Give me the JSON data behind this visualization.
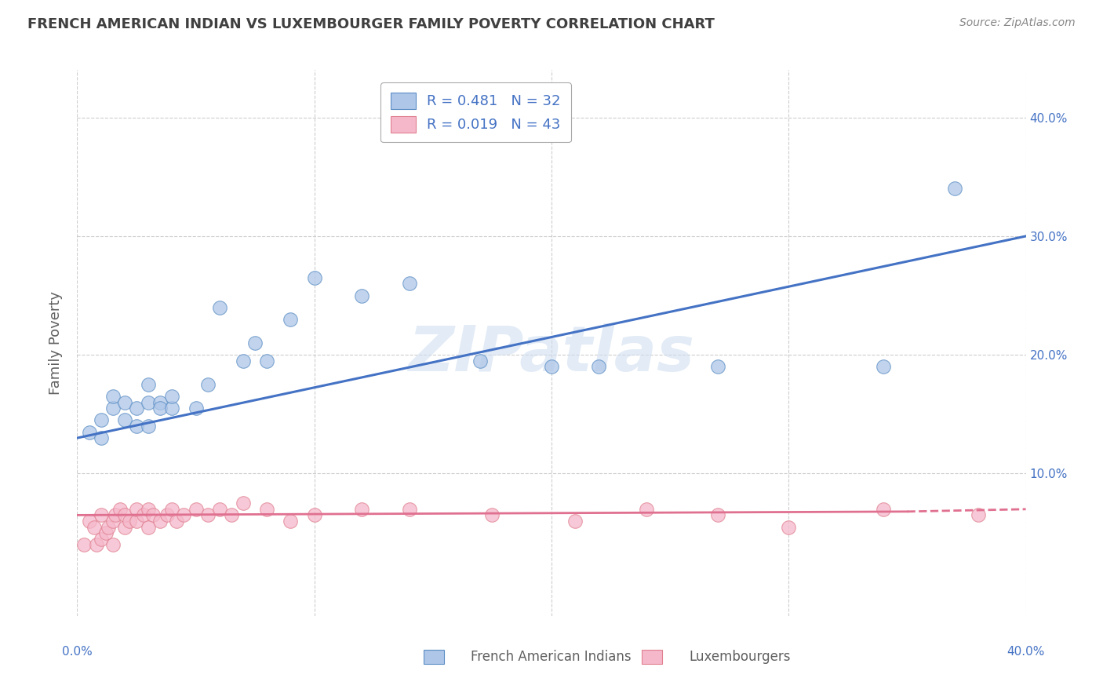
{
  "title": "FRENCH AMERICAN INDIAN VS LUXEMBOURGER FAMILY POVERTY CORRELATION CHART",
  "source_text": "Source: ZipAtlas.com",
  "ylabel": "Family Poverty",
  "x_min": 0.0,
  "x_max": 0.4,
  "y_min": -0.02,
  "y_max": 0.44,
  "x_ticks": [
    0.0,
    0.1,
    0.2,
    0.3,
    0.4
  ],
  "x_tick_labels": [
    "0.0%",
    "",
    "",
    "",
    "40.0%"
  ],
  "y_ticks": [
    0.1,
    0.2,
    0.3,
    0.4
  ],
  "y_tick_labels": [
    "10.0%",
    "20.0%",
    "30.0%",
    "40.0%"
  ],
  "blue_R": 0.481,
  "blue_N": 32,
  "pink_R": 0.019,
  "pink_N": 43,
  "blue_color": "#aec6e8",
  "pink_color": "#f5b8cb",
  "blue_edge_color": "#5b8ec4",
  "pink_edge_color": "#e08090",
  "blue_line_color": "#4472c4",
  "pink_line_color": "#e07090",
  "watermark": "ZIPatlas",
  "legend_label_blue": "French American Indians",
  "legend_label_pink": "Luxembourgers",
  "blue_scatter_x": [
    0.005,
    0.01,
    0.01,
    0.015,
    0.015,
    0.02,
    0.02,
    0.025,
    0.025,
    0.03,
    0.03,
    0.03,
    0.035,
    0.035,
    0.04,
    0.04,
    0.05,
    0.055,
    0.06,
    0.07,
    0.075,
    0.08,
    0.09,
    0.1,
    0.12,
    0.14,
    0.17,
    0.2,
    0.22,
    0.27,
    0.34,
    0.37
  ],
  "blue_scatter_y": [
    0.135,
    0.13,
    0.145,
    0.155,
    0.165,
    0.145,
    0.16,
    0.14,
    0.155,
    0.14,
    0.16,
    0.175,
    0.16,
    0.155,
    0.155,
    0.165,
    0.155,
    0.175,
    0.24,
    0.195,
    0.21,
    0.195,
    0.23,
    0.265,
    0.25,
    0.26,
    0.195,
    0.19,
    0.19,
    0.19,
    0.19,
    0.34
  ],
  "pink_scatter_x": [
    0.003,
    0.005,
    0.007,
    0.008,
    0.01,
    0.01,
    0.012,
    0.013,
    0.015,
    0.015,
    0.016,
    0.018,
    0.02,
    0.02,
    0.022,
    0.025,
    0.025,
    0.028,
    0.03,
    0.03,
    0.032,
    0.035,
    0.038,
    0.04,
    0.042,
    0.045,
    0.05,
    0.055,
    0.06,
    0.065,
    0.07,
    0.08,
    0.09,
    0.1,
    0.12,
    0.14,
    0.175,
    0.21,
    0.24,
    0.27,
    0.3,
    0.34,
    0.38
  ],
  "pink_scatter_y": [
    0.04,
    0.06,
    0.055,
    0.04,
    0.045,
    0.065,
    0.05,
    0.055,
    0.04,
    0.06,
    0.065,
    0.07,
    0.055,
    0.065,
    0.06,
    0.06,
    0.07,
    0.065,
    0.055,
    0.07,
    0.065,
    0.06,
    0.065,
    0.07,
    0.06,
    0.065,
    0.07,
    0.065,
    0.07,
    0.065,
    0.075,
    0.07,
    0.06,
    0.065,
    0.07,
    0.07,
    0.065,
    0.06,
    0.07,
    0.065,
    0.055,
    0.07,
    0.065
  ],
  "blue_line_x0": 0.0,
  "blue_line_y0": 0.13,
  "blue_line_x1": 0.4,
  "blue_line_y1": 0.3,
  "pink_line_x0": 0.0,
  "pink_line_y0": 0.065,
  "pink_line_x1": 0.4,
  "pink_line_y1": 0.07,
  "bg_color": "#ffffff",
  "grid_color": "#c8c8c8",
  "title_color": "#404040",
  "axis_label_color": "#606060",
  "tick_label_color": "#4472c4",
  "right_tick_color": "#4472c4"
}
